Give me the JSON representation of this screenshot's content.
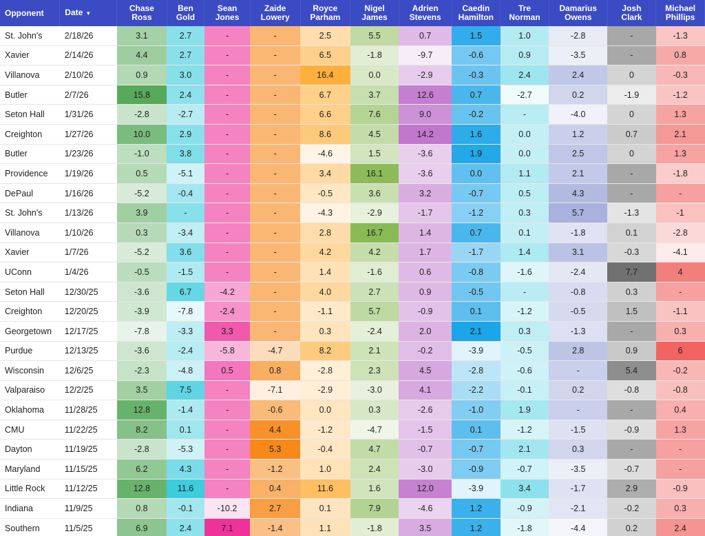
{
  "table": {
    "headers": [
      "Opponent",
      "Date",
      "Chase Ross",
      "Ben Gold",
      "Sean Jones",
      "Zaide Lowery",
      "Royce Parham",
      "Nigel James",
      "Adrien Stevens",
      "Caedin Hamilton",
      "Tre Norman",
      "Damarius Owens",
      "Josh Clark",
      "Michael Phillips"
    ],
    "sort_indicator": "▼",
    "player_colors": [
      "#43a047",
      "#26c6da",
      "#ec1b8f",
      "#f57c00",
      "#ffa726",
      "#7cb342",
      "#ba68c8",
      "#039be5",
      "#80deea",
      "#9fa8da",
      "#616161",
      "#ef5350"
    ],
    "rows": [
      {
        "opponent": "St. John's",
        "date": "2/18/26",
        "values": [
          "3.1",
          "2.7",
          "-",
          "-",
          "2.5",
          "5.5",
          "0.7",
          "1.5",
          "1.0",
          "-2.8",
          "-",
          "-1.3"
        ]
      },
      {
        "opponent": "Xavier",
        "date": "2/14/26",
        "values": [
          "4.4",
          "2.7",
          "-",
          "-",
          "6.5",
          "-1.8",
          "-9.7",
          "-0.6",
          "0.9",
          "-3.5",
          "-",
          "0.8"
        ]
      },
      {
        "opponent": "Villanova",
        "date": "2/10/26",
        "values": [
          "0.9",
          "3.0",
          "-",
          "-",
          "16.4",
          "0.0",
          "-2.9",
          "-0.3",
          "2.4",
          "2.4",
          "0",
          "-0.3"
        ]
      },
      {
        "opponent": "Butler",
        "date": "2/7/26",
        "values": [
          "15.8",
          "2.4",
          "-",
          "-",
          "6.7",
          "3.7",
          "12.6",
          "0.7",
          "-2.7",
          "0.2",
          "-1.9",
          "-1.2"
        ]
      },
      {
        "opponent": "Seton Hall",
        "date": "1/31/26",
        "values": [
          "-2.8",
          "-2.7",
          "-",
          "-",
          "6.6",
          "7.6",
          "9.0",
          "-0.2",
          "-",
          "-4.0",
          "0",
          "1.3"
        ]
      },
      {
        "opponent": "Creighton",
        "date": "1/27/26",
        "values": [
          "10.0",
          "2.9",
          "-",
          "-",
          "8.6",
          "4.5",
          "14.2",
          "1.6",
          "0.0",
          "1.2",
          "0.7",
          "2.1"
        ]
      },
      {
        "opponent": "Butler",
        "date": "1/23/26",
        "values": [
          "-1.0",
          "3.8",
          "-",
          "-",
          "-4.6",
          "1.5",
          "-3.6",
          "1.9",
          "0.0",
          "2.5",
          "0",
          "1.3"
        ]
      },
      {
        "opponent": "Providence",
        "date": "1/19/26",
        "values": [
          "0.5",
          "-5.1",
          "-",
          "-",
          "3.4",
          "16.1",
          "-3.6",
          "0.0",
          "1.1",
          "2.1",
          "-",
          "-1.8"
        ]
      },
      {
        "opponent": "DePaul",
        "date": "1/16/26",
        "values": [
          "-5.2",
          "-0.4",
          "-",
          "-",
          "-0.5",
          "3.6",
          "3.2",
          "-0.7",
          "0.5",
          "4.3",
          "-",
          "-"
        ]
      },
      {
        "opponent": "St. John's",
        "date": "1/13/26",
        "values": [
          "3.9",
          "-",
          "-",
          "-",
          "-4.3",
          "-2.9",
          "-1.7",
          "-1.2",
          "0.3",
          "5.7",
          "-1.3",
          "-1"
        ]
      },
      {
        "opponent": "Villanova",
        "date": "1/10/26",
        "values": [
          "0.3",
          "-3.4",
          "-",
          "-",
          "2.8",
          "16.7",
          "1.4",
          "0.7",
          "0.1",
          "-1.8",
          "0.1",
          "-2.8"
        ]
      },
      {
        "opponent": "Xavier",
        "date": "1/7/26",
        "values": [
          "-5.2",
          "3.6",
          "-",
          "-",
          "4.2",
          "4.2",
          "1.7",
          "-1.7",
          "1.4",
          "3.1",
          "-0.3",
          "-4.1"
        ]
      },
      {
        "opponent": "UConn",
        "date": "1/4/26",
        "values": [
          "-0.5",
          "-1.5",
          "-",
          "-",
          "1.4",
          "-1.6",
          "0.6",
          "-0.8",
          "-1.6",
          "-2.4",
          "7.7",
          "4"
        ]
      },
      {
        "opponent": "Seton Hall",
        "date": "12/30/25",
        "values": [
          "-3.6",
          "6.7",
          "-4.2",
          "-",
          "4.0",
          "2.7",
          "0.9",
          "-0.5",
          "-",
          "-0.8",
          "0.3",
          "-"
        ]
      },
      {
        "opponent": "Creighton",
        "date": "12/20/25",
        "values": [
          "-3.9",
          "-7.8",
          "-2.4",
          "-",
          "-1.1",
          "5.7",
          "-0.9",
          "0.1",
          "-1.2",
          "-0.5",
          "1.5",
          "-1.1"
        ]
      },
      {
        "opponent": "Georgetown",
        "date": "12/17/25",
        "values": [
          "-7.8",
          "-3.3",
          "3.3",
          "-",
          "0.3",
          "-2.4",
          "2.0",
          "2.1",
          "0.3",
          "-1.3",
          "-",
          "0.3"
        ]
      },
      {
        "opponent": "Purdue",
        "date": "12/13/25",
        "values": [
          "-3.6",
          "-2.4",
          "-5.8",
          "-4.7",
          "8.2",
          "2.1",
          "-0.2",
          "-3.9",
          "-0.5",
          "2.8",
          "0.9",
          "6"
        ]
      },
      {
        "opponent": "Wisconsin",
        "date": "12/6/25",
        "values": [
          "-2.3",
          "-4.8",
          "0.5",
          "0.8",
          "-2.8",
          "2.3",
          "4.5",
          "-2.8",
          "-0.6",
          "-",
          "5.4",
          "-0.2"
        ]
      },
      {
        "opponent": "Valparaiso",
        "date": "12/2/25",
        "values": [
          "3.5",
          "7.5",
          "-",
          "-7.1",
          "-2.9",
          "-3.0",
          "4.1",
          "-2.2",
          "-0.1",
          "0.2",
          "-0.8",
          "-0.8"
        ]
      },
      {
        "opponent": "Oklahoma",
        "date": "11/28/25",
        "values": [
          "12.8",
          "-1.4",
          "-",
          "-0.6",
          "0.0",
          "0.3",
          "-2.6",
          "-1.0",
          "1.9",
          "-",
          "-",
          "0.4"
        ]
      },
      {
        "opponent": "CMU",
        "date": "11/22/25",
        "values": [
          "8.2",
          "0.1",
          "-",
          "4.4",
          "-1.2",
          "-4.7",
          "-1.5",
          "0.1",
          "-1.2",
          "-1.5",
          "-0.9",
          "1.3"
        ]
      },
      {
        "opponent": "Dayton",
        "date": "11/19/25",
        "values": [
          "-2.8",
          "-5.3",
          "-",
          "5.3",
          "-0.4",
          "4.7",
          "-0.7",
          "-0.7",
          "2.1",
          "0.3",
          "-",
          "-"
        ]
      },
      {
        "opponent": "Maryland",
        "date": "11/15/25",
        "values": [
          "6.2",
          "4.3",
          "-",
          "-1.2",
          "1.0",
          "2.4",
          "-3.0",
          "-0.9",
          "-0.7",
          "-3.5",
          "-0.7",
          "-"
        ]
      },
      {
        "opponent": "Little Rock",
        "date": "11/12/25",
        "values": [
          "12.8",
          "11.6",
          "-",
          "0.4",
          "11.6",
          "1.6",
          "12.0",
          "-3.9",
          "3.4",
          "-1.7",
          "2.9",
          "-0.9"
        ]
      },
      {
        "opponent": "Indiana",
        "date": "11/9/25",
        "values": [
          "0.8",
          "-0.1",
          "-10.2",
          "2.7",
          "0.1",
          "7.9",
          "-4.6",
          "1.2",
          "-0.9",
          "-2.1",
          "-0.2",
          "0.3"
        ]
      },
      {
        "opponent": "Southern",
        "date": "11/5/25",
        "values": [
          "6.9",
          "2.4",
          "7.1",
          "-1.4",
          "1.1",
          "-1.8",
          "3.5",
          "1.2",
          "-1.8",
          "-4.4",
          "0.2",
          "2.4"
        ]
      }
    ]
  }
}
